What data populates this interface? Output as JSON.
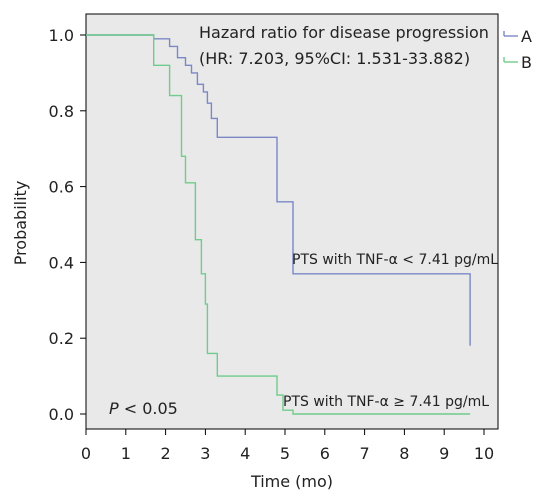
{
  "chart_data": {
    "type": "line",
    "step": true,
    "xlabel": "Time (mo)",
    "ylabel": "Probability",
    "xlim": [
      0,
      10.5
    ],
    "ylim": [
      0,
      1.05
    ],
    "xticks": [
      "0",
      "1",
      "2",
      "3",
      "4",
      "5",
      "6",
      "7",
      "8",
      "9",
      "10"
    ],
    "yticks": [
      "0.0",
      "0.2",
      "0.4",
      "0.6",
      "0.8",
      "1.0"
    ],
    "title_line1": "Hazard ratio for disease progression",
    "title_line2": "(HR: 7.203, 95%CI: 1.531-33.882)",
    "p_value_p": "P",
    "p_value_rest": " < 0.05",
    "annotation_a": "PTS with TNF-α < 7.41 pg/mL",
    "annotation_b": "PTS with TNF-α ≥ 7.41 pg/mL",
    "legend_position": "top-right",
    "grid": false,
    "series": [
      {
        "name": "A",
        "color": "#7b88c6",
        "x": [
          0,
          1.7,
          2.1,
          2.3,
          2.5,
          2.65,
          2.8,
          2.95,
          3.05,
          3.15,
          3.3,
          4.8,
          5.2,
          9.65,
          9.65
        ],
        "y": [
          1.0,
          0.99,
          0.97,
          0.94,
          0.92,
          0.9,
          0.87,
          0.85,
          0.82,
          0.78,
          0.73,
          0.56,
          0.37,
          0.37,
          0.18
        ]
      },
      {
        "name": "B",
        "color": "#6fcc8a",
        "x": [
          0,
          1.7,
          2.1,
          2.4,
          2.5,
          2.75,
          2.9,
          3.0,
          3.05,
          3.3,
          4.8,
          4.95,
          5.2,
          9.65
        ],
        "y": [
          1.0,
          0.92,
          0.84,
          0.68,
          0.61,
          0.46,
          0.37,
          0.29,
          0.16,
          0.1,
          0.05,
          0.01,
          0.0,
          0.0
        ]
      }
    ]
  }
}
